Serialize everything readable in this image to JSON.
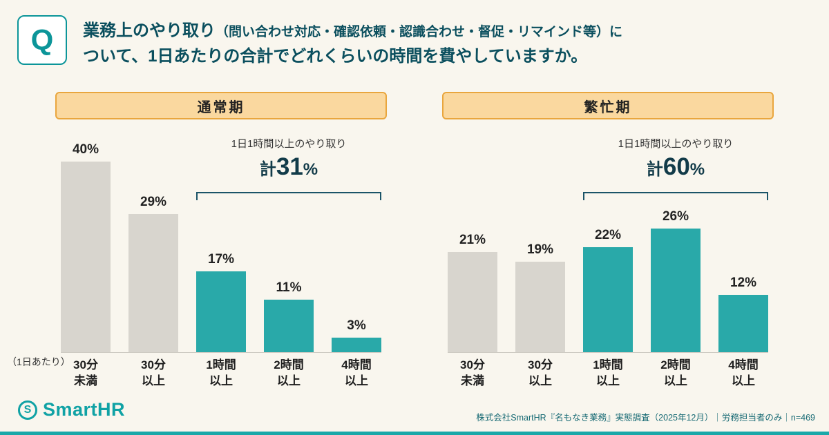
{
  "page": {
    "background": "#F9F6EE",
    "accent_teal": "#29A9A9",
    "dark_teal": "#0B4F5E",
    "gray_bar": "#D8D5CE",
    "pill_bg": "#FAD89F",
    "pill_border": "#E9A63E"
  },
  "header": {
    "q_label": "Q",
    "title_main": "業務上のやり取り",
    "title_paren": "（問い合わせ対応・確認依頼・認識合わせ・督促・リマインド等）に",
    "title_line2": "ついて、1日あたりの合計でどれくらいの時間を費やしていますか。"
  },
  "axis_note": "（1日あたり）",
  "footer": {
    "logo_initial": "S",
    "logo_text": "SmartHR",
    "source": "株式会社SmartHR『名もなき業務』実態調査（2025年12月）｜労務担当者のみ｜n=469"
  },
  "chart_data": [
    {
      "type": "bar",
      "title": "通常期",
      "categories": [
        "30分\n未満",
        "30分\n以上",
        "1時間\n以上",
        "2時間\n以上",
        "4時間\n以上"
      ],
      "values": [
        40,
        29,
        17,
        11,
        3
      ],
      "value_labels": [
        "40%",
        "29%",
        "17%",
        "11%",
        "3%"
      ],
      "bar_colors": [
        "gray",
        "gray",
        "teal",
        "teal",
        "teal"
      ],
      "annotation": {
        "label": "1日1時間以上のやり取り",
        "total_prefix": "計",
        "total_value": "31",
        "total_suffix": "%",
        "covers_categories": [
          "1時間以上",
          "2時間以上",
          "4時間以上"
        ]
      },
      "ylim": [
        0,
        45
      ],
      "unit": "%"
    },
    {
      "type": "bar",
      "title": "繁忙期",
      "categories": [
        "30分\n未満",
        "30分\n以上",
        "1時間\n以上",
        "2時間\n以上",
        "4時間\n以上"
      ],
      "values": [
        21,
        19,
        22,
        26,
        12
      ],
      "value_labels": [
        "21%",
        "19%",
        "22%",
        "26%",
        "12%"
      ],
      "bar_colors": [
        "gray",
        "gray",
        "teal",
        "teal",
        "teal"
      ],
      "annotation": {
        "label": "1日1時間以上のやり取り",
        "total_prefix": "計",
        "total_value": "60",
        "total_suffix": "%",
        "covers_categories": [
          "1時間以上",
          "2時間以上",
          "4時間以上"
        ]
      },
      "ylim": [
        0,
        45
      ],
      "unit": "%"
    }
  ]
}
